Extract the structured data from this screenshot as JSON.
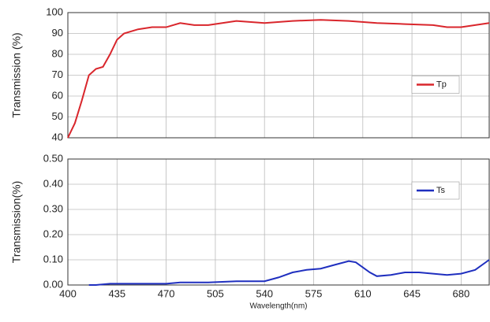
{
  "chart_data": [
    {
      "type": "line",
      "y_label": "Transmission (%)",
      "x": [
        400,
        405,
        410,
        415,
        420,
        425,
        430,
        435,
        440,
        450,
        460,
        470,
        480,
        490,
        500,
        510,
        520,
        540,
        560,
        580,
        600,
        620,
        640,
        660,
        670,
        680,
        690,
        700
      ],
      "series": [
        {
          "name": "Tp",
          "color": "#d9262c",
          "values": [
            40,
            47,
            58,
            70,
            73,
            74,
            80,
            87,
            90,
            92,
            93,
            93,
            95,
            94,
            94,
            95,
            96,
            95,
            96,
            96.5,
            96,
            95,
            94.5,
            94,
            93,
            93,
            94,
            95
          ]
        }
      ],
      "xlim": [
        400,
        700
      ],
      "xticks": [
        400,
        435,
        470,
        505,
        540,
        575,
        610,
        645,
        680
      ],
      "ylim": [
        40,
        100
      ],
      "yticks": [
        40,
        50,
        60,
        70,
        80,
        90,
        100
      ],
      "grid": true,
      "legend": "center right"
    },
    {
      "type": "line",
      "y_label": "Transmission(%)",
      "x_label": "Wavelength(nm)",
      "x": [
        415,
        420,
        430,
        450,
        470,
        480,
        500,
        520,
        540,
        550,
        560,
        570,
        580,
        590,
        600,
        605,
        615,
        620,
        630,
        640,
        650,
        660,
        670,
        680,
        690,
        700
      ],
      "series": [
        {
          "name": "Ts",
          "color": "#1f2fbf",
          "values": [
            0,
            0,
            0.005,
            0.005,
            0.005,
            0.01,
            0.01,
            0.015,
            0.015,
            0.03,
            0.05,
            0.06,
            0.065,
            0.08,
            0.095,
            0.09,
            0.05,
            0.035,
            0.04,
            0.05,
            0.05,
            0.045,
            0.04,
            0.045,
            0.06,
            0.1
          ]
        }
      ],
      "xlim": [
        400,
        700
      ],
      "xticks": [
        400,
        435,
        470,
        505,
        540,
        575,
        610,
        645,
        680
      ],
      "ylim": [
        0,
        0.5
      ],
      "yticks": [
        {
          "value": 0,
          "label": "0.00"
        },
        {
          "value": 0.1,
          "label": "0.10"
        },
        {
          "value": 0.2,
          "label": "0.20"
        },
        {
          "value": 0.3,
          "label": "0.30"
        },
        {
          "value": 0.4,
          "label": "0.40"
        },
        {
          "value": 0.5,
          "label": "0.50"
        }
      ],
      "grid": true,
      "legend": "upper right"
    }
  ]
}
